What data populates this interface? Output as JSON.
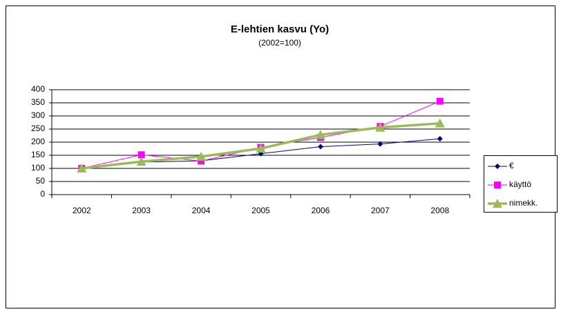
{
  "chart_data": {
    "type": "line",
    "title": "E-lehtien kasvu (Yo)",
    "subtitle": "(2002=100)",
    "categories": [
      "2002",
      "2003",
      "2004",
      "2005",
      "2006",
      "2007",
      "2008"
    ],
    "series": [
      {
        "name": "€",
        "color": "#000080",
        "marker": "diamond",
        "values": [
          100,
          124,
          129,
          156,
          183,
          193,
          213
        ]
      },
      {
        "name": "käyttö",
        "color": "#ff00ff",
        "marker": "square",
        "values": [
          100,
          152,
          128,
          180,
          218,
          260,
          356
        ]
      },
      {
        "name": "nimekk.",
        "color": "#9bbb59",
        "marker": "triangle",
        "values": [
          100,
          126,
          145,
          176,
          228,
          256,
          272
        ]
      }
    ],
    "ylim": [
      0,
      400
    ],
    "yticks": [
      0,
      50,
      100,
      150,
      200,
      250,
      300,
      350,
      400
    ],
    "grid": true,
    "legend": "right"
  }
}
